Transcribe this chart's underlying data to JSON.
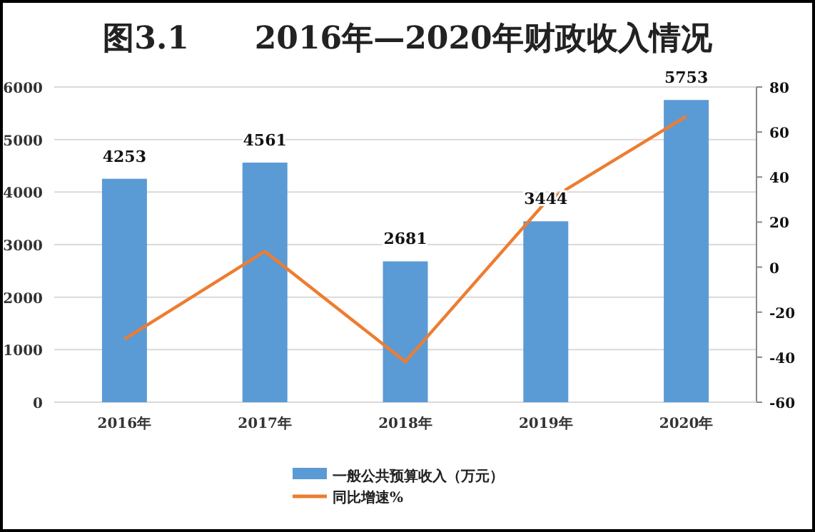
{
  "chart_data": {
    "type": "bar",
    "title": "图3.1      2016年—2020年财政收入情况",
    "categories": [
      "2016年",
      "2017年",
      "2018年",
      "2019年",
      "2020年"
    ],
    "series": [
      {
        "name": "一般公共预算收入（万元）",
        "type": "bar",
        "color": "#5b9bd5",
        "values": [
          4253,
          4561,
          2681,
          3444,
          5753
        ],
        "value_labels": [
          "4253",
          "4561",
          "2681",
          "3444",
          "5753"
        ]
      },
      {
        "name": "同比增速%",
        "type": "line",
        "axis": "y2",
        "color": "#ed7d31",
        "values": [
          -32,
          7,
          -42,
          29,
          67
        ]
      }
    ],
    "ylim": [
      0,
      6000
    ],
    "yticks": [
      0,
      1000,
      2000,
      3000,
      4000,
      5000,
      6000
    ],
    "y2lim": [
      -60,
      80
    ],
    "y2ticks": [
      -60,
      -40,
      -20,
      0,
      20,
      40,
      60,
      80
    ],
    "grid": "y",
    "legend": "bottom",
    "marker": "none",
    "line_style": "solid"
  }
}
